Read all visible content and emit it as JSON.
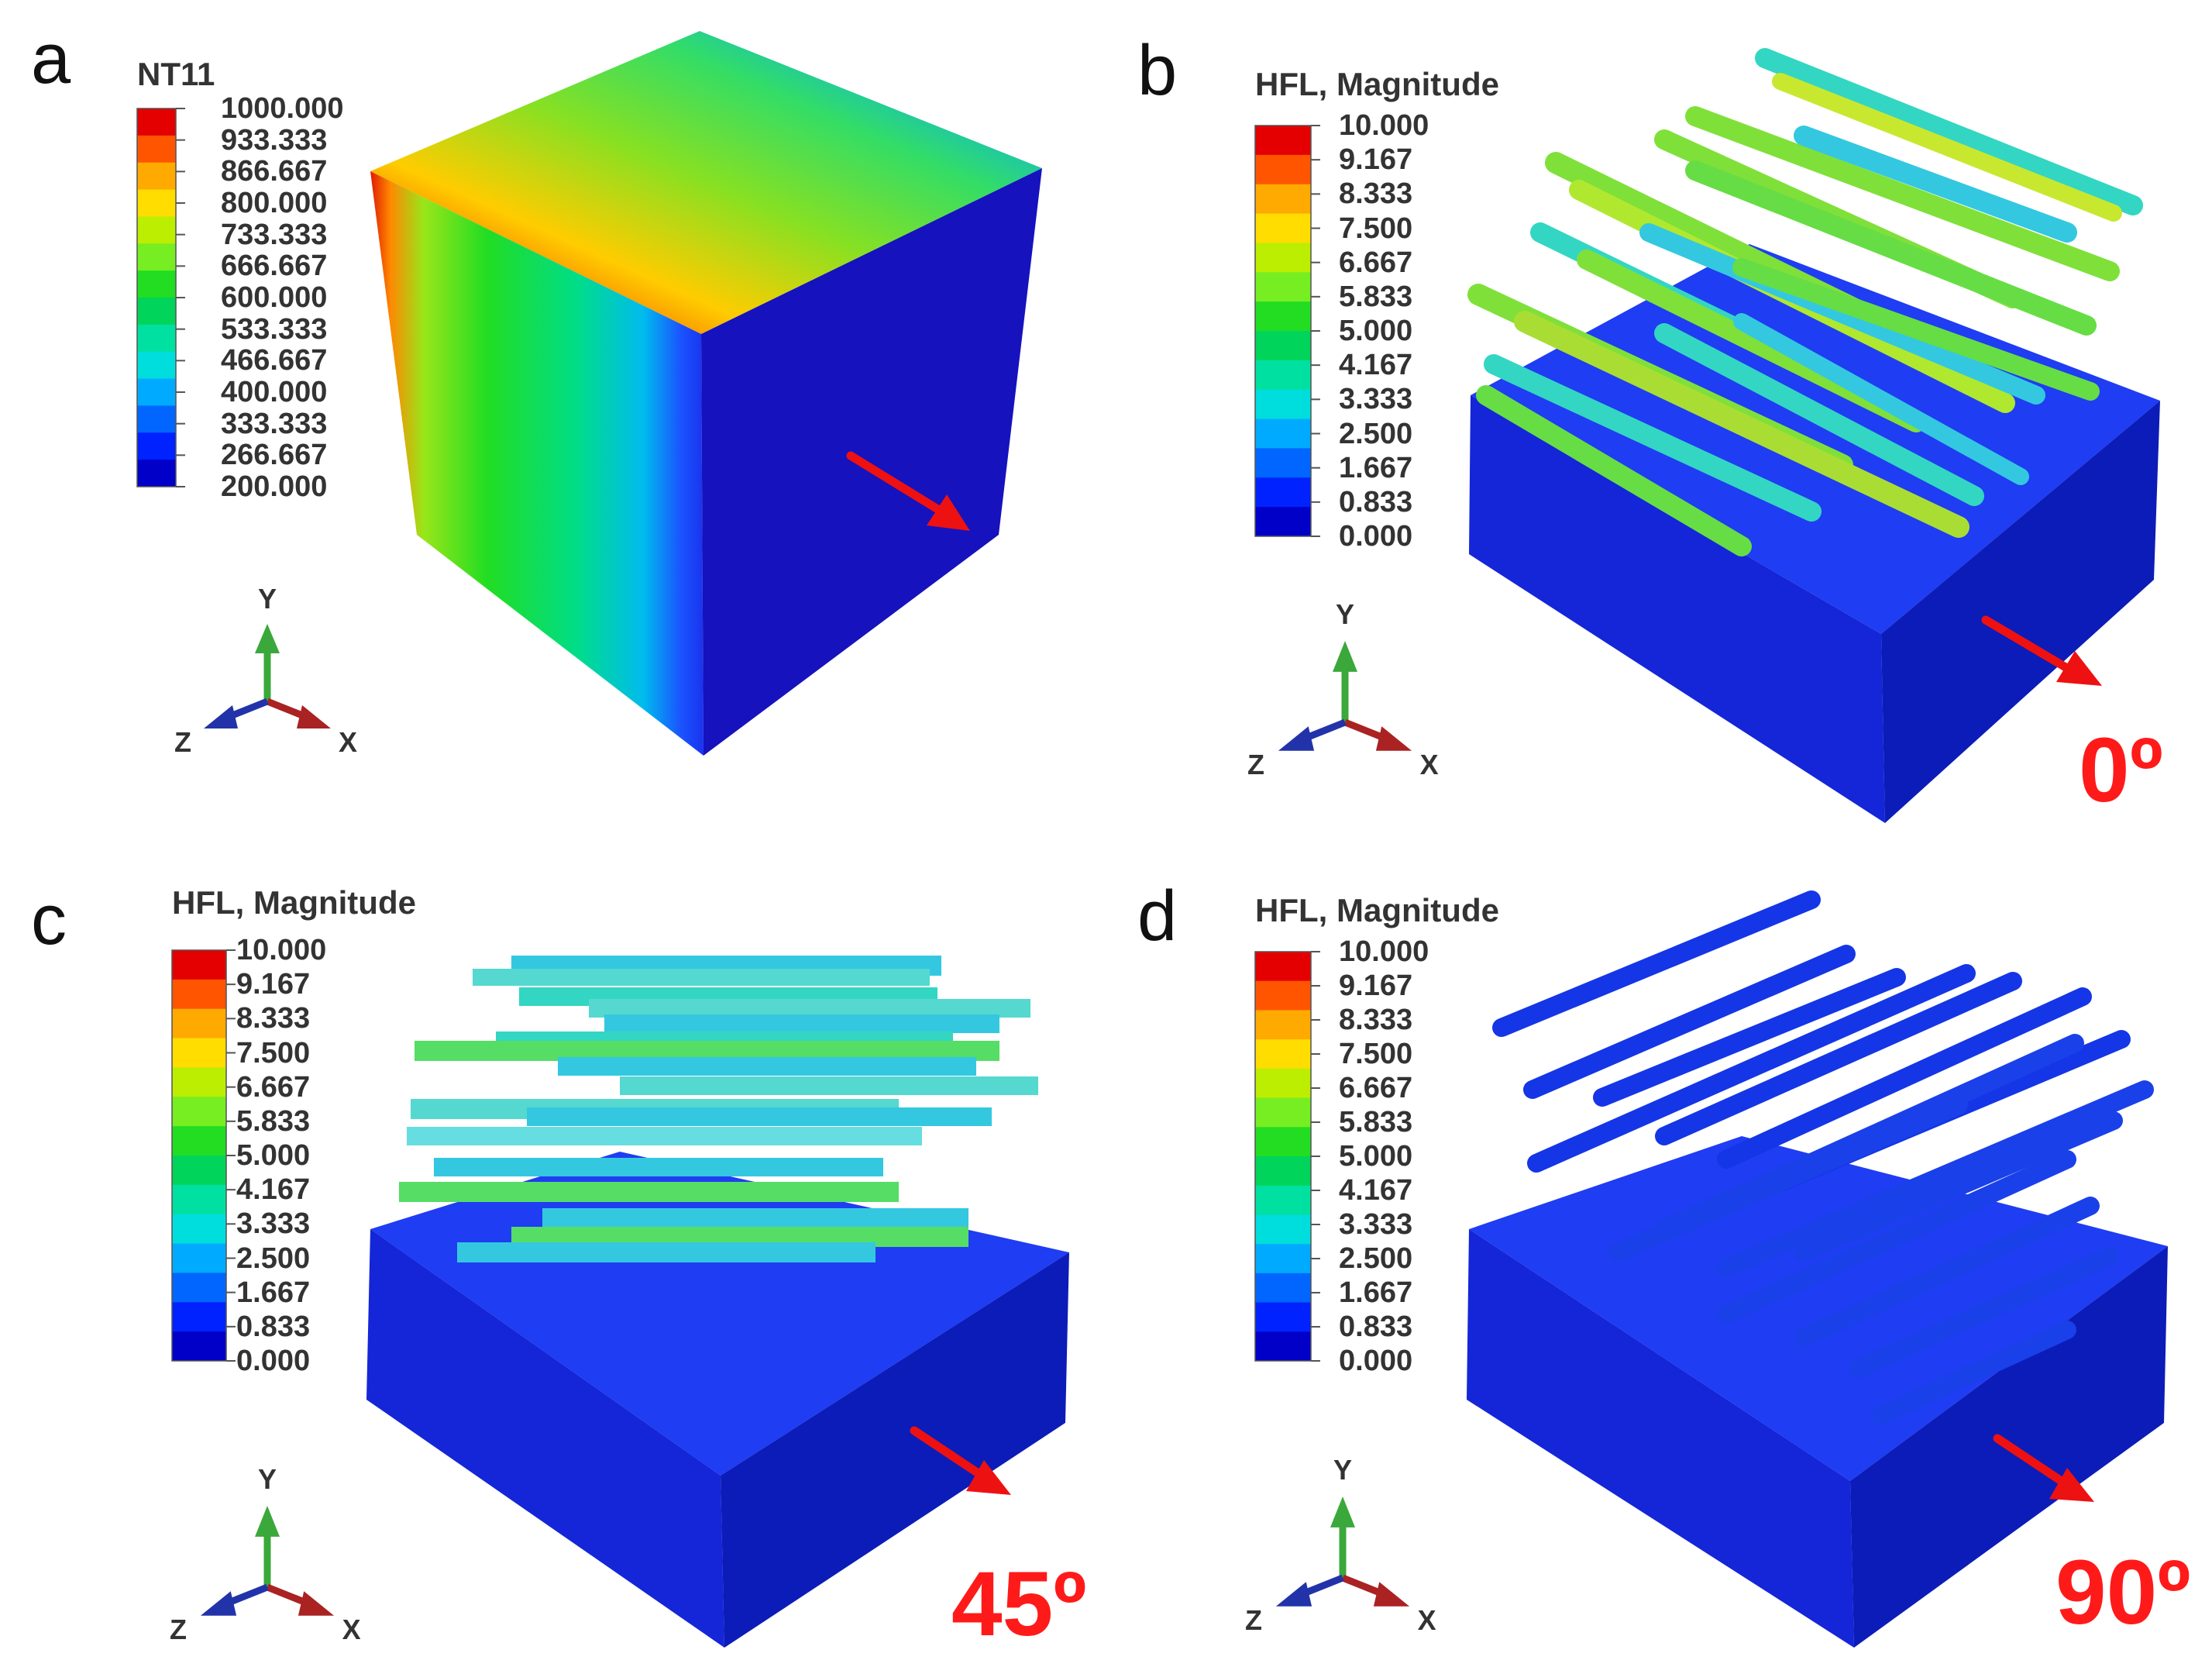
{
  "colors": {
    "legend": [
      "#0000c8",
      "#0022ff",
      "#0066ff",
      "#00aaff",
      "#00dddd",
      "#00e0a0",
      "#00d45a",
      "#22dd22",
      "#77ee22",
      "#bbee00",
      "#ffdd00",
      "#ffaa00",
      "#ff5500",
      "#e40000"
    ],
    "rod_high": "#7fe03a",
    "rod_mid": "#33d6c2",
    "rod_low": "#1436e6",
    "block_top": "#1f3df2",
    "block_front": "#1426d8",
    "block_side": "#0c1cb8",
    "arrow": "#ee1111"
  },
  "panels": [
    {
      "id": "a",
      "label": "a",
      "legend_title": "NT11",
      "ticks": [
        "1000.000",
        "933.333",
        "866.667",
        "800.000",
        "733.333",
        "666.667",
        "600.000",
        "533.333",
        "466.667",
        "400.000",
        "333.333",
        "266.667",
        "200.000"
      ],
      "angle": "",
      "axes": {
        "y": "Y",
        "x": "X",
        "z": "Z"
      }
    },
    {
      "id": "b",
      "label": "b",
      "legend_title": "HFL, Magnitude",
      "ticks": [
        "10.000",
        "9.167",
        "8.333",
        "7.500",
        "6.667",
        "5.833",
        "5.000",
        "4.167",
        "3.333",
        "2.500",
        "1.667",
        "0.833",
        "0.000"
      ],
      "angle": "0º",
      "axes": {
        "y": "Y",
        "x": "X",
        "z": "Z"
      }
    },
    {
      "id": "c",
      "label": "c",
      "legend_title": "HFL, Magnitude",
      "ticks": [
        "10.000",
        "9.167",
        "8.333",
        "7.500",
        "6.667",
        "5.833",
        "5.000",
        "4.167",
        "3.333",
        "2.500",
        "1.667",
        "0.833",
        "0.000"
      ],
      "angle": "45º",
      "axes": {
        "y": "Y",
        "x": "X",
        "z": "Z"
      }
    },
    {
      "id": "d",
      "label": "d",
      "legend_title": "HFL, Magnitude",
      "ticks": [
        "10.000",
        "9.167",
        "8.333",
        "7.500",
        "6.667",
        "5.833",
        "5.000",
        "4.167",
        "3.333",
        "2.500",
        "1.667",
        "0.833",
        "0.000"
      ],
      "angle": "90º",
      "axes": {
        "y": "Y",
        "x": "X",
        "z": "Z"
      }
    }
  ]
}
